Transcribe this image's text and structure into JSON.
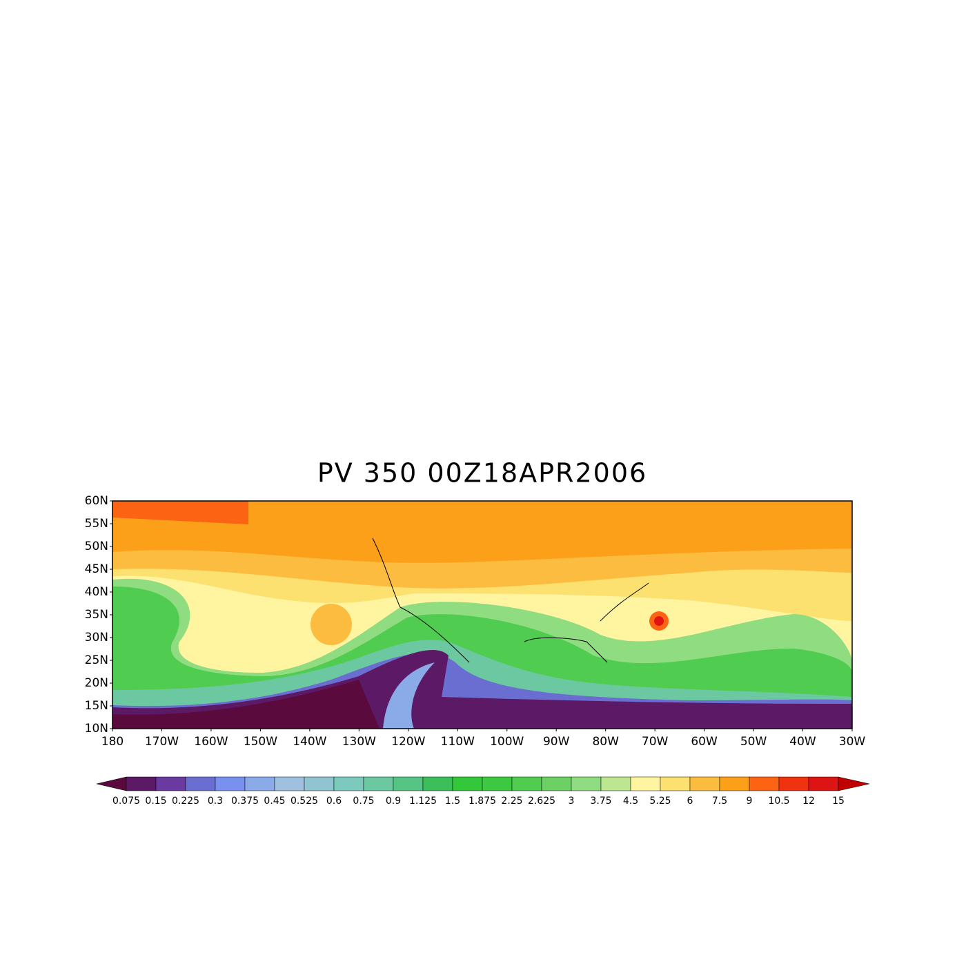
{
  "title": "PV 350 00Z18APR2006",
  "lat_labels": [
    "60N",
    "55N",
    "50N",
    "45N",
    "40N",
    "35N",
    "30N",
    "25N",
    "20N",
    "15N",
    "10N"
  ],
  "lon_labels": [
    "180",
    "170W",
    "160W",
    "150W",
    "140W",
    "130W",
    "120W",
    "110W",
    "100W",
    "90W",
    "80W",
    "70W",
    "60W",
    "50W",
    "40W",
    "30W"
  ],
  "colorbar": {
    "levels": [
      0.075,
      0.15,
      0.225,
      0.3,
      0.375,
      0.45,
      0.525,
      0.6,
      0.75,
      0.9,
      1.125,
      1.5,
      1.875,
      2.25,
      2.625,
      3,
      3.75,
      4.5,
      5.25,
      6,
      7.5,
      9,
      10.5,
      12,
      15
    ],
    "colors": [
      "#5a0a3c",
      "#5c1a66",
      "#6a3aa0",
      "#6a6ed0",
      "#7890f0",
      "#8aaae8",
      "#a0c0e0",
      "#90c4d0",
      "#7ccabe",
      "#6cc8a0",
      "#56c482",
      "#3cbe5a",
      "#32c83a",
      "#3cc840",
      "#50cc50",
      "#6cd064",
      "#90dc80",
      "#bce690",
      "#fff4a0",
      "#fce070",
      "#fcbc40",
      "#fca01a",
      "#fc6414",
      "#f03210",
      "#dc1414",
      "#c00000"
    ]
  }
}
